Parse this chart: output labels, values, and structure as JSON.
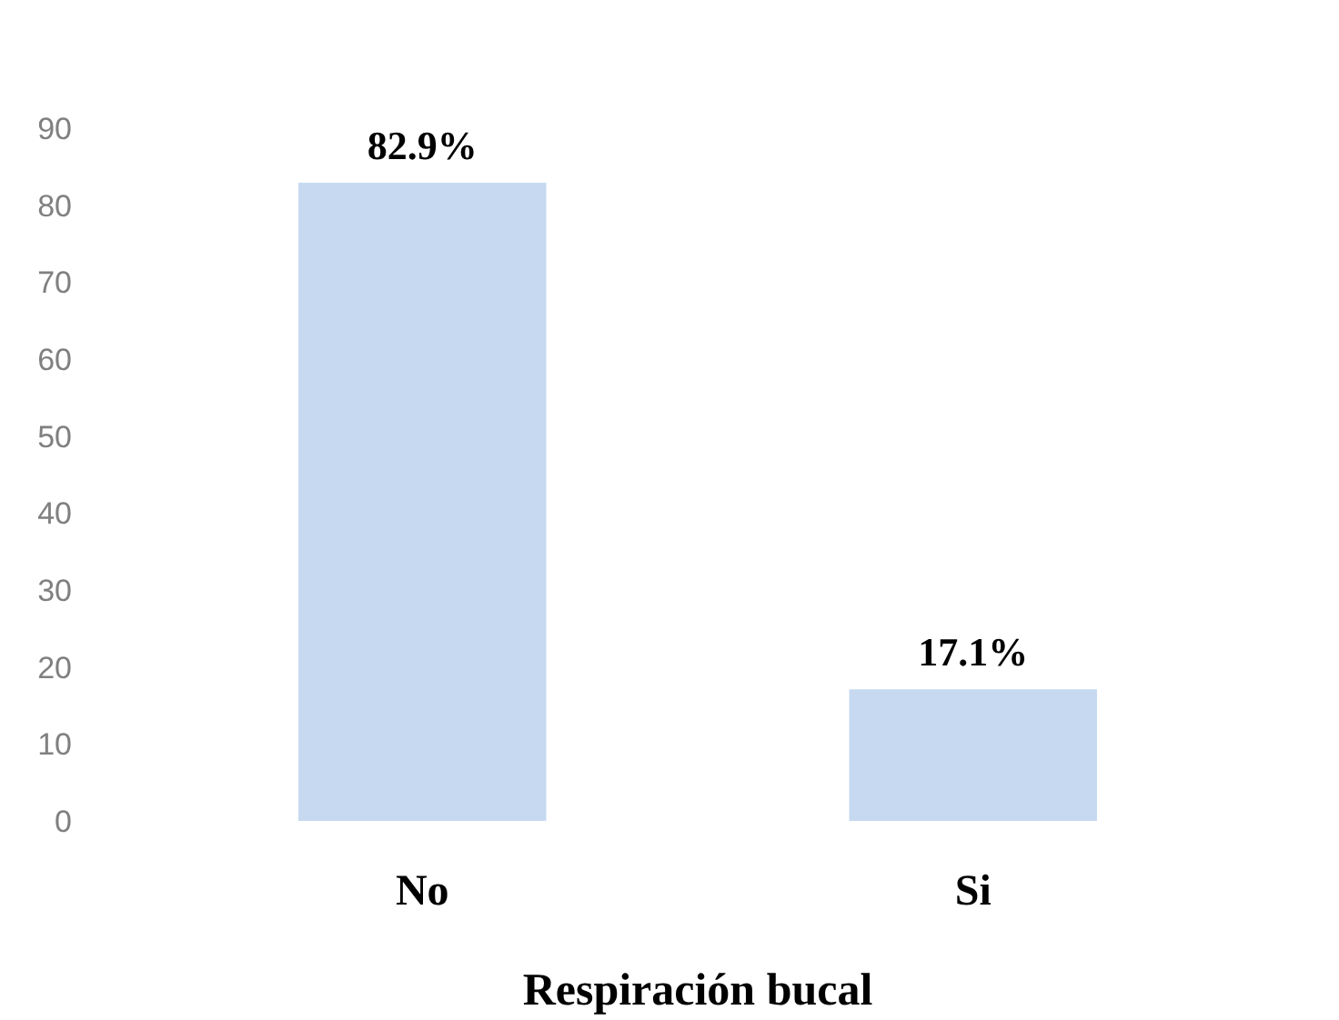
{
  "chart_data": {
    "type": "bar",
    "xlabel": "Respiración bucal",
    "categories": [
      "No",
      "Si"
    ],
    "values": [
      82.9,
      17.1
    ],
    "value_labels": [
      "82.9%",
      "17.1%"
    ],
    "color": "#c6d9f1",
    "ylim": [
      0,
      90
    ],
    "yticks": [
      0,
      10,
      20,
      30,
      40,
      50,
      60,
      70,
      80,
      90
    ],
    "grid": false
  }
}
